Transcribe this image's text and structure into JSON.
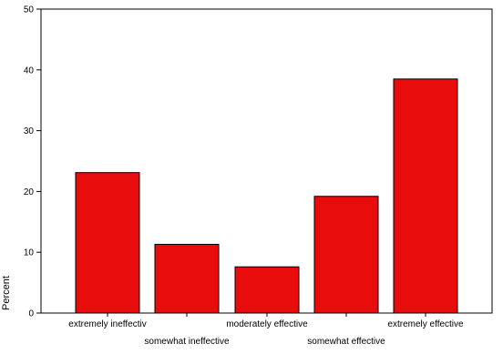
{
  "chart_data": {
    "type": "bar",
    "categories": [
      "extremely ineffectiv",
      "somewhat ineffective",
      "moderately effective",
      "somewhat effective",
      "extremely effective"
    ],
    "values": [
      23.1,
      11.3,
      7.6,
      19.2,
      38.5
    ],
    "title": "",
    "xlabel": "",
    "ylabel": "Percent",
    "ylim": [
      0,
      50
    ],
    "yticks": [
      "0",
      "10",
      "20",
      "30",
      "40",
      "50"
    ],
    "grid": false,
    "legend": "none",
    "bar_color": "#e80c0c",
    "bar_edge_color": "#000000"
  }
}
